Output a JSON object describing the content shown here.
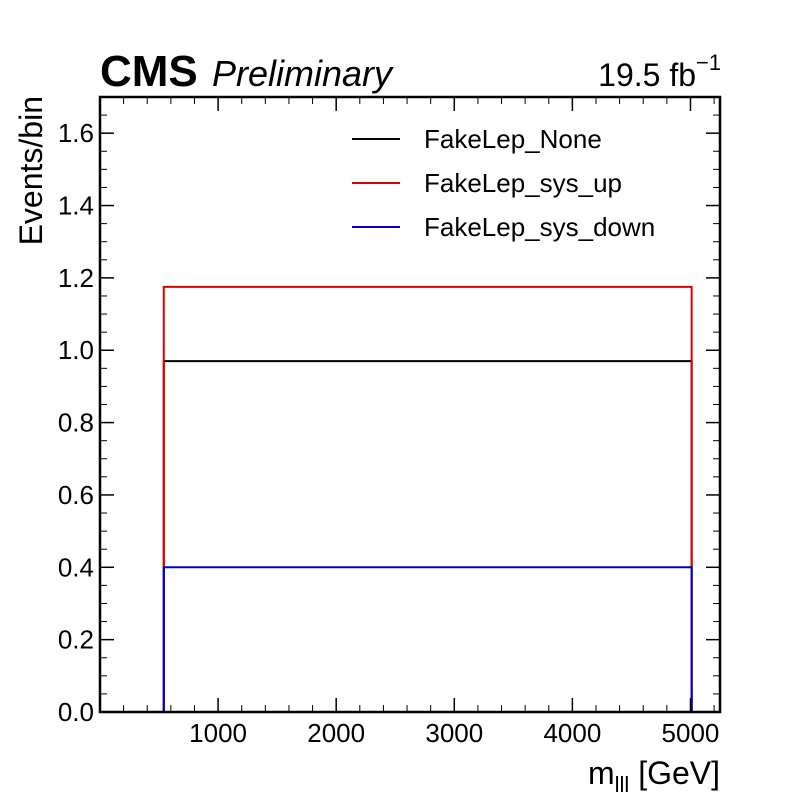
{
  "header": {
    "experiment": "CMS",
    "status": "Preliminary",
    "lumi_value": "19.5 fb",
    "lumi_exponent": "−1"
  },
  "chart_data": {
    "type": "line",
    "drawstyle": "step-histogram",
    "xlabel_main": "m",
    "xlabel_sub": "lll",
    "xlabel_unit": "[GeV]",
    "ylabel": "Events/bin",
    "xlim": [
      0,
      5250
    ],
    "ylim": [
      0,
      1.7
    ],
    "x_ticks": [
      1000,
      2000,
      3000,
      4000,
      5000
    ],
    "y_ticks": [
      "0.0",
      "0.2",
      "0.4",
      "0.6",
      "0.8",
      "1.0",
      "1.2",
      "1.4",
      "1.6"
    ],
    "grid": false,
    "legend_position": "top-right",
    "bin_edges": [
      540,
      5010
    ],
    "series": [
      {
        "name": "FakeLep_None",
        "color": "#000000",
        "values": [
          0.97
        ]
      },
      {
        "name": "FakeLep_sys_up",
        "color": "#dd0000",
        "values": [
          1.175
        ]
      },
      {
        "name": "FakeLep_sys_down",
        "color": "#0000cc",
        "values": [
          0.4
        ]
      }
    ]
  }
}
